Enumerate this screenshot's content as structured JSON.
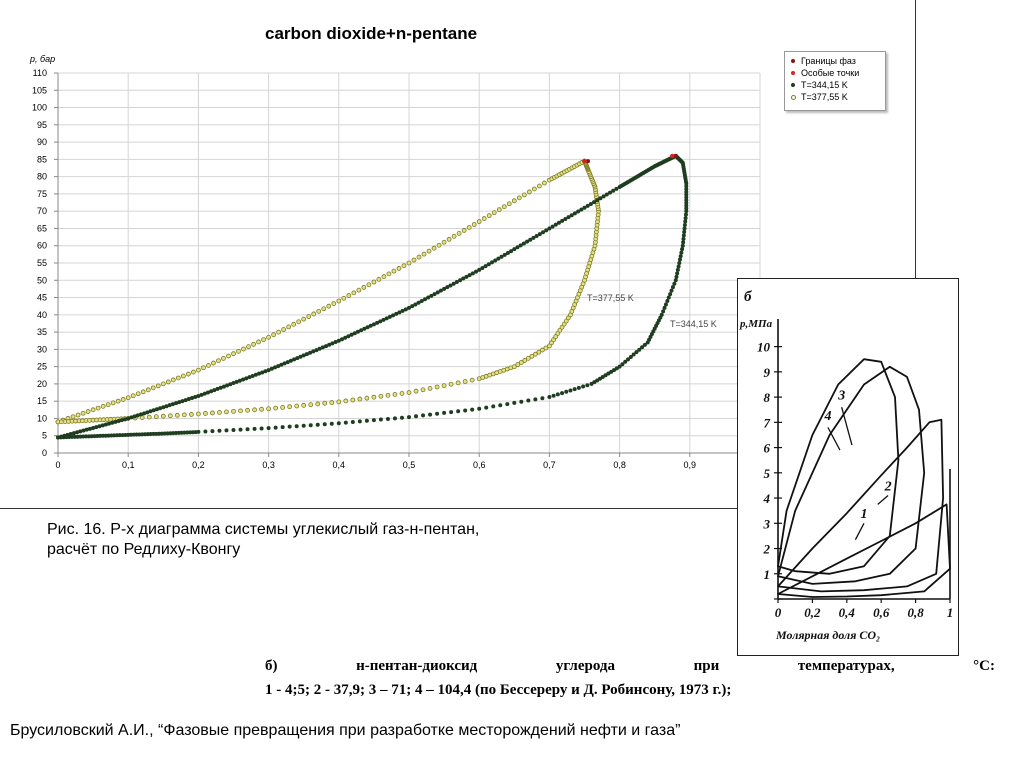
{
  "colors": {
    "grid": "#d4d4d4",
    "axis": "#888888",
    "series_344": "#1f3d1f",
    "series_377": "#7c7a1e",
    "phase_boundary": "#8a1414",
    "special_point": "#e02020"
  },
  "main_chart": {
    "title": "carbon dioxide+n-pentane",
    "ylabel": "p, бар",
    "x_ticks": [
      "0",
      "0,1",
      "0,2",
      "0,3",
      "0,4",
      "0,5",
      "0,6",
      "0,7",
      "0,8",
      "0,9"
    ],
    "y_ticks": [
      "0",
      "5",
      "10",
      "15",
      "20",
      "25",
      "30",
      "35",
      "40",
      "45",
      "50",
      "55",
      "60",
      "65",
      "70",
      "75",
      "80",
      "85",
      "90",
      "95",
      "100",
      "105",
      "110"
    ],
    "annotation_377": "T=377,55 K",
    "annotation_344": "T=344,15 K"
  },
  "legend": {
    "items": [
      {
        "label": "Границы фаз",
        "color": "#8a1414"
      },
      {
        "label": "Особые точки",
        "color": "#e02020"
      },
      {
        "label": "T=344,15 K",
        "color": "#1f3d1f"
      },
      {
        "label": "T=377,55 K",
        "color": "#7c7a1e"
      }
    ]
  },
  "chart_data": [
    {
      "type": "scatter",
      "title": "carbon dioxide+n-pentane",
      "xlabel": "",
      "ylabel": "p, бар",
      "xlim": [
        0,
        1
      ],
      "ylim": [
        0,
        110
      ],
      "grid": true,
      "legend_position": "top-right",
      "series": [
        {
          "name": "T=344,15 K",
          "bubble": [
            [
              0,
              4.5
            ],
            [
              0.1,
              10
            ],
            [
              0.2,
              16.5
            ],
            [
              0.3,
              24
            ],
            [
              0.4,
              32.5
            ],
            [
              0.5,
              42
            ],
            [
              0.6,
              53
            ],
            [
              0.7,
              65
            ],
            [
              0.8,
              77
            ],
            [
              0.85,
              83
            ],
            [
              0.88,
              86
            ]
          ],
          "dew": [
            [
              0,
              4.5
            ],
            [
              0.04,
              4.8
            ],
            [
              0.08,
              5.1
            ],
            [
              0.12,
              5.4
            ],
            [
              0.16,
              5.7
            ],
            [
              0.2,
              6.1
            ],
            [
              0.3,
              7.2
            ],
            [
              0.4,
              8.6
            ],
            [
              0.5,
              10.4
            ],
            [
              0.6,
              12.8
            ],
            [
              0.7,
              16.2
            ],
            [
              0.76,
              20
            ],
            [
              0.8,
              25
            ],
            [
              0.84,
              32
            ],
            [
              0.86,
              40
            ],
            [
              0.88,
              50
            ],
            [
              0.89,
              60
            ],
            [
              0.895,
              70
            ],
            [
              0.895,
              78
            ],
            [
              0.89,
              84
            ],
            [
              0.88,
              86
            ]
          ]
        },
        {
          "name": "T=377,55 K",
          "bubble": [
            [
              0,
              9
            ],
            [
              0.1,
              16
            ],
            [
              0.2,
              24
            ],
            [
              0.3,
              33.5
            ],
            [
              0.4,
              44
            ],
            [
              0.5,
              55
            ],
            [
              0.6,
              67
            ],
            [
              0.7,
              79
            ],
            [
              0.75,
              84.5
            ]
          ],
          "dew": [
            [
              0,
              9
            ],
            [
              0.05,
              9.5
            ],
            [
              0.1,
              10
            ],
            [
              0.2,
              11.3
            ],
            [
              0.3,
              12.8
            ],
            [
              0.4,
              14.8
            ],
            [
              0.5,
              17.5
            ],
            [
              0.6,
              21.5
            ],
            [
              0.65,
              25
            ],
            [
              0.7,
              31
            ],
            [
              0.73,
              40
            ],
            [
              0.75,
              50
            ],
            [
              0.765,
              60
            ],
            [
              0.77,
              70
            ],
            [
              0.765,
              77
            ],
            [
              0.755,
              82
            ],
            [
              0.75,
              84.5
            ]
          ]
        }
      ],
      "phase_boundary_points": [
        [
          0.88,
          86
        ],
        [
          0.755,
          84.5
        ]
      ],
      "special_points": [
        [
          0.875,
          86
        ],
        [
          0.75,
          84.5
        ]
      ]
    },
    {
      "type": "line",
      "title": "б",
      "xlabel": "Молярная доля CO₂",
      "ylabel": "p,МПа",
      "xlim": [
        0,
        1
      ],
      "ylim": [
        0,
        10.5
      ],
      "x_ticks": [
        "0",
        "0,2",
        "0,4",
        "0,6",
        "0,8",
        "1"
      ],
      "y_ticks": [
        "0",
        "1",
        "2",
        "3",
        "4",
        "5",
        "6",
        "7",
        "8",
        "9",
        "10"
      ],
      "series": [
        {
          "name": "1",
          "x": [
            0,
            0.2,
            0.4,
            0.6,
            0.8,
            0.98,
            1.0,
            0.85,
            0.6,
            0.4,
            0.2,
            0
          ],
          "y": [
            0.2,
            0.9,
            1.6,
            2.3,
            3.0,
            3.75,
            1.2,
            0.3,
            0.15,
            0.1,
            0.08,
            0.2
          ]
        },
        {
          "name": "2",
          "x": [
            0,
            0.2,
            0.4,
            0.6,
            0.75,
            0.88,
            0.95,
            0.96,
            0.92,
            0.75,
            0.5,
            0.25,
            0
          ],
          "y": [
            0.5,
            2.0,
            3.4,
            4.9,
            6.0,
            7.0,
            7.1,
            4.0,
            1.0,
            0.5,
            0.35,
            0.3,
            0.5
          ]
        },
        {
          "name": "3",
          "x": [
            0,
            0.1,
            0.3,
            0.5,
            0.65,
            0.75,
            0.82,
            0.85,
            0.8,
            0.65,
            0.45,
            0.2,
            0
          ],
          "y": [
            0.9,
            3.5,
            6.5,
            8.5,
            9.2,
            8.8,
            7.5,
            5.0,
            2.0,
            1.0,
            0.7,
            0.6,
            0.9
          ]
        },
        {
          "name": "4",
          "x": [
            0,
            0.05,
            0.2,
            0.35,
            0.5,
            0.6,
            0.68,
            0.7,
            0.65,
            0.5,
            0.3,
            0.1,
            0
          ],
          "y": [
            1.3,
            3.5,
            6.5,
            8.5,
            9.5,
            9.4,
            8.0,
            5.5,
            2.5,
            1.3,
            1.0,
            1.1,
            1.3
          ]
        }
      ],
      "labels": [
        "1",
        "2",
        "3",
        "4"
      ]
    }
  ],
  "inset": {
    "title": "б",
    "ylabel": "p,МПа",
    "xlabel": "Молярная доля CO₂",
    "curve_labels": [
      "1",
      "2",
      "3",
      "4"
    ],
    "x_ticks": [
      "0",
      "0,2",
      "0,4",
      "0,6",
      "0,8",
      "1"
    ],
    "y_ticks": [
      "0",
      "1",
      "2",
      "3",
      "4",
      "5",
      "6",
      "7",
      "8",
      "9",
      "10"
    ]
  },
  "caption": {
    "line1": "Рис. 16. P-x диаграмма системы углекислый газ-н-пентан,",
    "line2": "расчёт по Редлиху-Квонгу"
  },
  "scanned_text": {
    "line1_words": [
      "б)",
      "н-пентан-диоксид",
      "углерода",
      "при",
      "температурах,",
      "°С:"
    ],
    "line2": "1 - 4;5; 2 - 37,9; 3 – 71; 4 – 104,4 (по Бессереру и Д. Робинсону, 1973 г.);"
  },
  "citation": "Брусиловский А.И., “Фазовые превращения при разработке месторождений нефти и газа”"
}
